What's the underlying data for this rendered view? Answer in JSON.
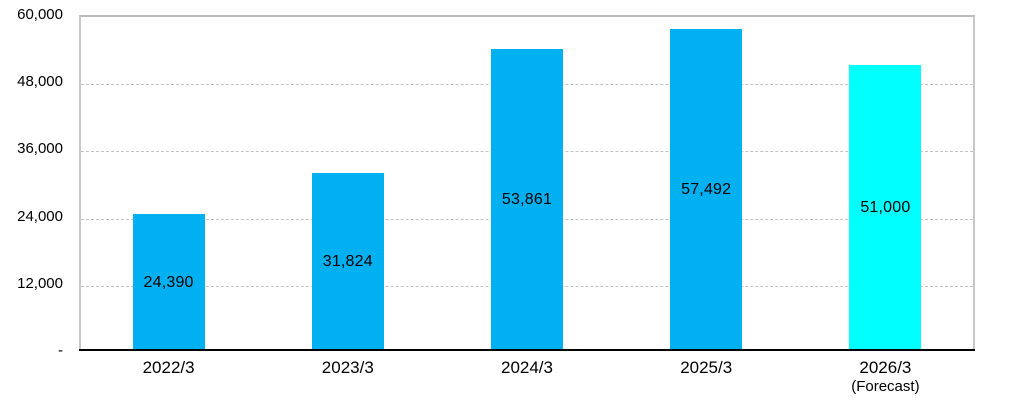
{
  "chart_data": {
    "type": "bar",
    "title": "",
    "xlabel": "",
    "ylabel": "",
    "legend": "none",
    "grid": true,
    "ylim": [
      0,
      60000
    ],
    "categories": [
      {
        "label": "2022/3"
      },
      {
        "label": "2023/3"
      },
      {
        "label": "2024/3"
      },
      {
        "label": "2025/3"
      },
      {
        "label": "2026/3",
        "sublabel": "(Forecast)"
      }
    ],
    "values": [
      24390,
      31824,
      53861,
      57492,
      51000
    ],
    "value_labels": [
      "24,390",
      "31,824",
      "53,861",
      "57,492",
      "51,000"
    ],
    "bar_colors": [
      "#00b0f0",
      "#00b0f0",
      "#00b0f0",
      "#00b0f0",
      "#00ffff"
    ],
    "yticks": [
      {
        "value": 60000,
        "label": "60,000"
      },
      {
        "value": 48000,
        "label": "48,000"
      },
      {
        "value": 36000,
        "label": "36,000"
      },
      {
        "value": 24000,
        "label": "24,000"
      },
      {
        "value": 12000,
        "label": "12,000"
      },
      {
        "value": 0,
        "label": "-"
      }
    ],
    "colors": {
      "bar": "#00b0f0",
      "forecast_bar": "#00ffff",
      "gridline": "#c2c2c2",
      "plot_border": "#c8c8c8",
      "axis_line": "#000000",
      "text": "#000000"
    }
  }
}
